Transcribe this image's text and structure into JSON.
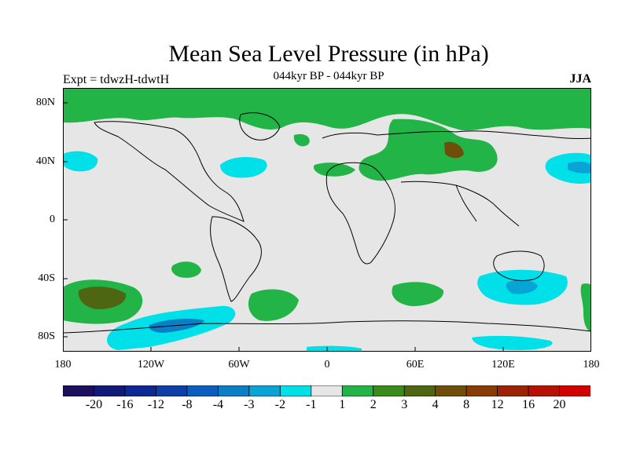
{
  "header": {
    "title": "Mean Sea Level Pressure (in hPa)",
    "subtitle": "044kyr BP - 044kyr BP",
    "experiment": "Expt = tdwzH-tdwtH",
    "season": "JJA"
  },
  "axes": {
    "lat_labels": [
      "80N",
      "40N",
      "0",
      "40S",
      "80S"
    ],
    "lon_labels": [
      "180",
      "120W",
      "60W",
      "0",
      "60E",
      "120E",
      "180"
    ]
  },
  "colorbar": {
    "colors": [
      "#1b0f5e",
      "#101a78",
      "#0d2894",
      "#0e3ea8",
      "#0a5ebe",
      "#0b7ec8",
      "#08a4d6",
      "#00e0e8",
      "#e6e6e6",
      "#22b446",
      "#3a8a1c",
      "#4e6612",
      "#6e4e0a",
      "#8a3c06",
      "#9e2204",
      "#b81004",
      "#d40000"
    ],
    "labels": [
      "-20",
      "-16",
      "-12",
      "-8",
      "-4",
      "-3",
      "-2",
      "-1",
      "1",
      "2",
      "3",
      "4",
      "8",
      "12",
      "16",
      "20"
    ]
  },
  "legend_colors": {
    "neutral": "#e6e6e6",
    "green_light": "#22b446",
    "green_dark": "#4e6612",
    "brown": "#6e4e0a",
    "cyan": "#00e0e8",
    "blue_mid": "#08a4d6",
    "blue_dark": "#0b7ec8"
  }
}
